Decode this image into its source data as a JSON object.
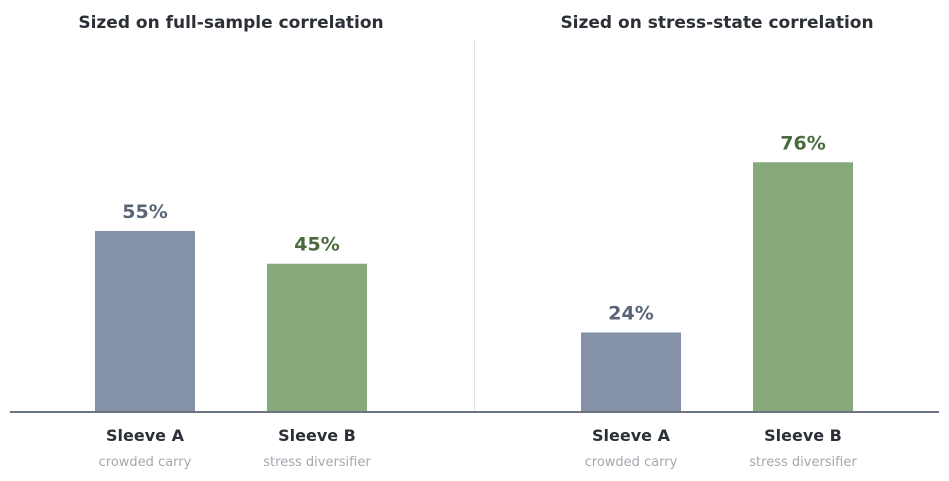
{
  "colors": {
    "sleeve_a": "#8591a7",
    "sleeve_b": "#86a97b",
    "label_a": "#5a6578",
    "label_b": "#4a6a3d",
    "title": "#2b2f36",
    "category": "#2b2f36",
    "sublabel": "#a3a8ae",
    "axis": "#6b7480",
    "divider": "#e1e3e6"
  },
  "chart_data": [
    {
      "type": "bar",
      "title": "Sized on full-sample correlation",
      "categories": [
        "Sleeve A",
        "Sleeve B"
      ],
      "sublabels": [
        "crowded carry",
        "stress diversifier"
      ],
      "values": [
        55,
        45
      ],
      "value_labels": [
        "55%",
        "45%"
      ],
      "ylim": [
        0,
        100
      ],
      "grid": false
    },
    {
      "type": "bar",
      "title": "Sized on stress-state correlation",
      "categories": [
        "Sleeve A",
        "Sleeve B"
      ],
      "sublabels": [
        "crowded carry",
        "stress diversifier"
      ],
      "values": [
        24,
        76
      ],
      "value_labels": [
        "24%",
        "76%"
      ],
      "ylim": [
        0,
        100
      ],
      "grid": false
    }
  ]
}
